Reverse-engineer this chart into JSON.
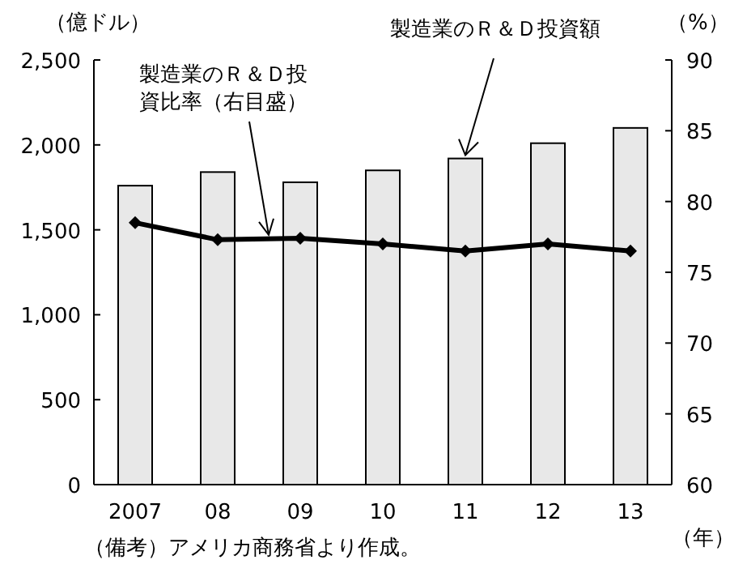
{
  "chart_data": {
    "type": "bar",
    "ylabel": "（億ドル）",
    "y2label": "（%）",
    "xlabel": "（年）",
    "categories": [
      "2007",
      "08",
      "09",
      "10",
      "11",
      "12",
      "13"
    ],
    "series": [
      {
        "name": "製造業のＲ＆Ｄ投資額",
        "color": "#e8e8e8",
        "values": [
          1760,
          1840,
          1780,
          1850,
          1920,
          2010,
          2100
        ]
      },
      {
        "name": "製造業のＲ＆Ｄ投資比率（右目盛）",
        "type": "line",
        "axis": "y2",
        "color": "#000000",
        "marker": "diamond",
        "values": [
          78.5,
          77.3,
          77.4,
          77.0,
          76.5,
          77.0,
          76.5
        ]
      }
    ],
    "ylim": [
      0,
      2500
    ],
    "yticks": [
      {
        "value": 0,
        "label": "0"
      },
      {
        "value": 500,
        "label": "500"
      },
      {
        "value": 1000,
        "label": "1,000"
      },
      {
        "value": 1500,
        "label": "1,500"
      },
      {
        "value": 2000,
        "label": "2,000"
      },
      {
        "value": 2500,
        "label": "2,500"
      }
    ],
    "y2lim": [
      60,
      90
    ],
    "y2ticks": [
      60,
      65,
      70,
      75,
      80,
      85,
      90
    ],
    "annotations": [
      "（備考）アメリカ商務省より作成。"
    ],
    "grid": false,
    "legend": false
  }
}
